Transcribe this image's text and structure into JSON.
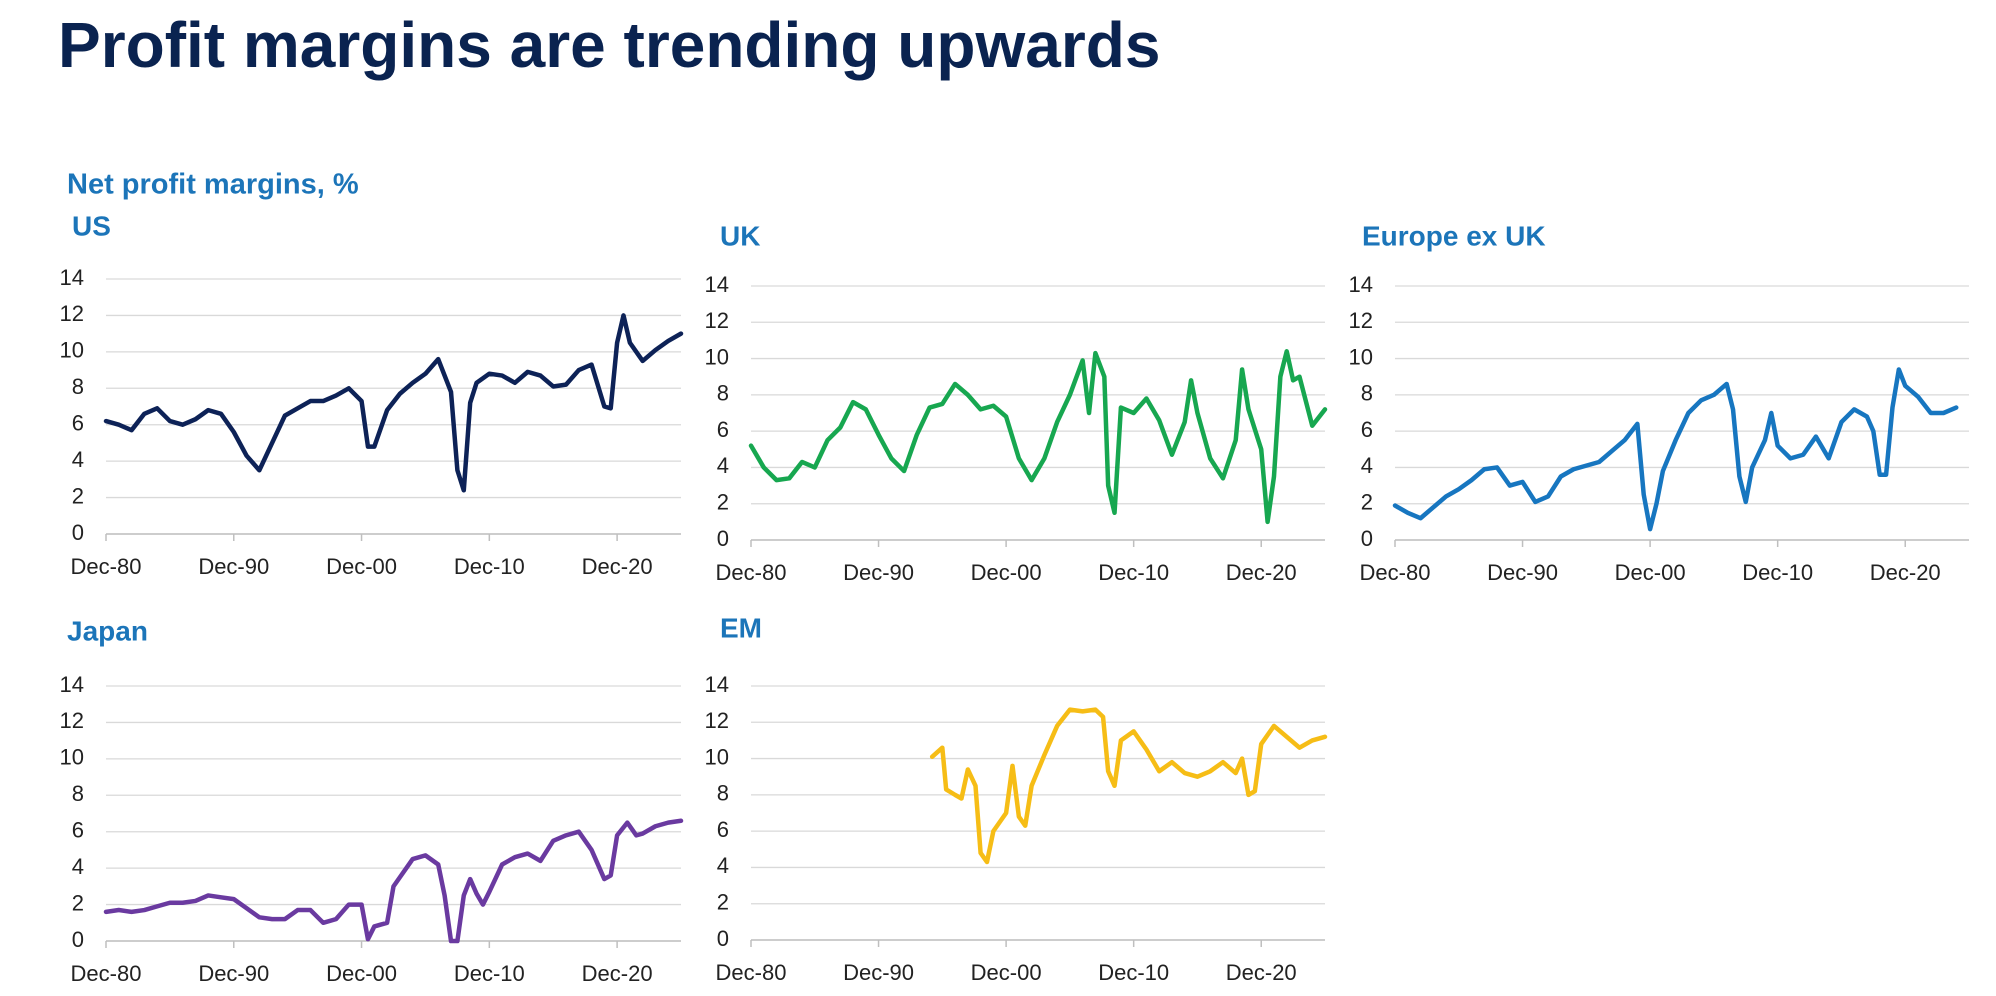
{
  "title": "Profit margins are trending upwards",
  "subtitle": "Net profit margins, %",
  "chart_data": [
    {
      "type": "line",
      "title": "US",
      "color": "#0d2257",
      "grid": true,
      "xlim": [
        1981,
        2026
      ],
      "xticks": [
        {
          "value": 1981,
          "label": "Dec-80"
        },
        {
          "value": 1991,
          "label": "Dec-90"
        },
        {
          "value": 2001,
          "label": "Dec-00"
        },
        {
          "value": 2011,
          "label": "Dec-10"
        },
        {
          "value": 2021,
          "label": "Dec-20"
        }
      ],
      "ylim": [
        0,
        14
      ],
      "yticks": [
        0,
        2,
        4,
        6,
        8,
        10,
        12,
        14
      ],
      "x": [
        1981,
        1982,
        1983,
        1984,
        1985,
        1986,
        1987,
        1988,
        1989,
        1990,
        1991,
        1992,
        1993,
        1994,
        1995,
        1996,
        1997,
        1998,
        1999,
        2000,
        2001,
        2001.5,
        2002,
        2003,
        2004,
        2005,
        2006,
        2007,
        2008,
        2008.5,
        2009,
        2009.5,
        2010,
        2011,
        2012,
        2013,
        2014,
        2015,
        2016,
        2017,
        2018,
        2019,
        2020,
        2020.5,
        2021,
        2021.5,
        2022,
        2023,
        2024,
        2025,
        2026
      ],
      "values": [
        6.2,
        6.0,
        5.7,
        6.6,
        6.9,
        6.2,
        6.0,
        6.3,
        6.8,
        6.6,
        5.6,
        4.3,
        3.5,
        5.0,
        6.5,
        6.9,
        7.3,
        7.3,
        7.6,
        8.0,
        7.3,
        4.8,
        4.8,
        6.8,
        7.7,
        8.3,
        8.8,
        9.6,
        7.8,
        3.5,
        2.4,
        7.2,
        8.3,
        8.8,
        8.7,
        8.3,
        8.9,
        8.7,
        8.1,
        8.2,
        9.0,
        9.3,
        7.0,
        6.9,
        10.5,
        12.0,
        10.5,
        9.5,
        10.1,
        10.6,
        11.0
      ]
    },
    {
      "type": "line",
      "title": "UK",
      "color": "#17a750",
      "grid": true,
      "xlim": [
        1981,
        2026
      ],
      "xticks": [
        {
          "value": 1981,
          "label": "Dec-80"
        },
        {
          "value": 1991,
          "label": "Dec-90"
        },
        {
          "value": 2001,
          "label": "Dec-00"
        },
        {
          "value": 2011,
          "label": "Dec-10"
        },
        {
          "value": 2021,
          "label": "Dec-20"
        }
      ],
      "ylim": [
        0,
        14
      ],
      "yticks": [
        0,
        2,
        4,
        6,
        8,
        10,
        12,
        14
      ],
      "x": [
        1981,
        1982,
        1983,
        1984,
        1985,
        1986,
        1987,
        1988,
        1989,
        1990,
        1991,
        1992,
        1993,
        1994,
        1995,
        1996,
        1997,
        1998,
        1999,
        2000,
        2001,
        2002,
        2003,
        2004,
        2005,
        2006,
        2007,
        2007.5,
        2008,
        2008.7,
        2009,
        2009.5,
        2010,
        2011,
        2012,
        2013,
        2014,
        2015,
        2015.5,
        2016,
        2017,
        2018,
        2019,
        2019.5,
        2020,
        2021,
        2021.5,
        2022,
        2022.5,
        2023,
        2023.5,
        2024,
        2025,
        2026
      ],
      "values": [
        5.2,
        4.0,
        3.3,
        3.4,
        4.3,
        4.0,
        5.5,
        6.2,
        7.6,
        7.2,
        5.8,
        4.5,
        3.8,
        5.8,
        7.3,
        7.5,
        8.6,
        8.0,
        7.2,
        7.4,
        6.8,
        4.5,
        3.3,
        4.5,
        6.5,
        8.0,
        9.9,
        7.0,
        10.3,
        9.0,
        3.0,
        1.5,
        7.3,
        7.0,
        7.8,
        6.6,
        4.7,
        6.5,
        8.8,
        7.0,
        4.5,
        3.4,
        5.5,
        9.4,
        7.2,
        5.0,
        1.0,
        3.5,
        9.0,
        10.4,
        8.8,
        9.0,
        6.3,
        7.2
      ]
    },
    {
      "type": "line",
      "title": "Europe ex UK",
      "color": "#1776c0",
      "grid": true,
      "xlim": [
        1981,
        2026
      ],
      "xticks": [
        {
          "value": 1981,
          "label": "Dec-80"
        },
        {
          "value": 1991,
          "label": "Dec-90"
        },
        {
          "value": 2001,
          "label": "Dec-00"
        },
        {
          "value": 2011,
          "label": "Dec-10"
        },
        {
          "value": 2021,
          "label": "Dec-20"
        }
      ],
      "ylim": [
        0,
        14
      ],
      "yticks": [
        0,
        2,
        4,
        6,
        8,
        10,
        12,
        14
      ],
      "x": [
        1981,
        1982,
        1983,
        1984,
        1985,
        1986,
        1987,
        1988,
        1989,
        1990,
        1991,
        1992,
        1993,
        1994,
        1995,
        1996,
        1997,
        1998,
        1999,
        2000,
        2000.5,
        2001,
        2001.5,
        2002,
        2003,
        2004,
        2005,
        2006,
        2007,
        2007.5,
        2008,
        2008.5,
        2009,
        2010,
        2010.5,
        2011,
        2012,
        2013,
        2014,
        2015,
        2016,
        2017,
        2018,
        2018.5,
        2019,
        2019.5,
        2020,
        2020.5,
        2021,
        2022,
        2023,
        2024,
        2025
      ],
      "values": [
        1.9,
        1.5,
        1.2,
        1.8,
        2.4,
        2.8,
        3.3,
        3.9,
        4.0,
        3.0,
        3.2,
        2.1,
        2.4,
        3.5,
        3.9,
        4.1,
        4.3,
        4.9,
        5.5,
        6.4,
        2.5,
        0.6,
        2.0,
        3.8,
        5.5,
        7.0,
        7.7,
        8.0,
        8.6,
        7.2,
        3.5,
        2.1,
        4.0,
        5.5,
        7.0,
        5.2,
        4.5,
        4.7,
        5.7,
        4.5,
        6.5,
        7.2,
        6.8,
        6.0,
        3.6,
        3.6,
        7.3,
        9.4,
        8.5,
        7.9,
        7.0,
        7.0,
        7.3
      ]
    },
    {
      "type": "line",
      "title": "Japan",
      "color": "#6a3aa0",
      "grid": true,
      "xlim": [
        1981,
        2026
      ],
      "xticks": [
        {
          "value": 1981,
          "label": "Dec-80"
        },
        {
          "value": 1991,
          "label": "Dec-90"
        },
        {
          "value": 2001,
          "label": "Dec-00"
        },
        {
          "value": 2011,
          "label": "Dec-10"
        },
        {
          "value": 2021,
          "label": "Dec-20"
        }
      ],
      "ylim": [
        0,
        14
      ],
      "yticks": [
        0,
        2,
        4,
        6,
        8,
        10,
        12,
        14
      ],
      "x": [
        1981,
        1982,
        1983,
        1984,
        1985,
        1986,
        1987,
        1988,
        1989,
        1990,
        1991,
        1992,
        1993,
        1994,
        1995,
        1996,
        1997,
        1998,
        1999,
        2000,
        2001,
        2001.5,
        2002,
        2003,
        2003.5,
        2004,
        2005,
        2006,
        2007,
        2007.5,
        2008,
        2008.5,
        2009,
        2009.5,
        2010,
        2010.5,
        2011,
        2012,
        2013,
        2014,
        2015,
        2016,
        2017,
        2018,
        2019,
        2020,
        2020.5,
        2021,
        2021.8,
        2022.5,
        2023,
        2024,
        2025,
        2026
      ],
      "values": [
        1.6,
        1.7,
        1.6,
        1.7,
        1.9,
        2.1,
        2.1,
        2.2,
        2.5,
        2.4,
        2.3,
        1.8,
        1.3,
        1.2,
        1.2,
        1.7,
        1.7,
        1.0,
        1.2,
        2.0,
        2.0,
        0.1,
        0.8,
        1.0,
        3.0,
        3.5,
        4.5,
        4.7,
        4.2,
        2.5,
        0,
        0,
        2.5,
        3.4,
        2.6,
        2.0,
        2.7,
        4.2,
        4.6,
        4.8,
        4.4,
        5.5,
        5.8,
        6.0,
        5.0,
        3.4,
        3.6,
        5.8,
        6.5,
        5.8,
        5.9,
        6.3,
        6.5,
        6.6
      ]
    },
    {
      "type": "line",
      "title": "EM",
      "color": "#f6bd16",
      "grid": true,
      "xlim": [
        1981,
        2026
      ],
      "xticks": [
        {
          "value": 1981,
          "label": "Dec-80"
        },
        {
          "value": 1991,
          "label": "Dec-90"
        },
        {
          "value": 2001,
          "label": "Dec-00"
        },
        {
          "value": 2011,
          "label": "Dec-10"
        },
        {
          "value": 2021,
          "label": "Dec-20"
        }
      ],
      "ylim": [
        0,
        14
      ],
      "yticks": [
        0,
        2,
        4,
        6,
        8,
        10,
        12,
        14
      ],
      "x": [
        1995.2,
        1996,
        1996.3,
        1997,
        1997.5,
        1998,
        1998.6,
        1999,
        1999.5,
        2000,
        2001,
        2001.5,
        2002,
        2002.5,
        2003,
        2004,
        2005,
        2006,
        2007,
        2008,
        2008.6,
        2009,
        2009.5,
        2010,
        2011,
        2012,
        2013,
        2014,
        2015,
        2016,
        2017,
        2018,
        2019,
        2019.5,
        2020,
        2020.5,
        2021,
        2022,
        2023,
        2024,
        2025,
        2026
      ],
      "values": [
        10.1,
        10.6,
        8.3,
        8.0,
        7.8,
        9.4,
        8.5,
        4.8,
        4.3,
        6.0,
        7.0,
        9.6,
        6.8,
        6.3,
        8.5,
        10.2,
        11.8,
        12.7,
        12.6,
        12.7,
        12.3,
        9.3,
        8.5,
        11.0,
        11.5,
        10.5,
        9.3,
        9.8,
        9.2,
        9.0,
        9.3,
        9.8,
        9.2,
        10.0,
        8.0,
        8.2,
        10.8,
        11.8,
        11.2,
        10.6,
        11.0,
        11.2
      ]
    }
  ]
}
